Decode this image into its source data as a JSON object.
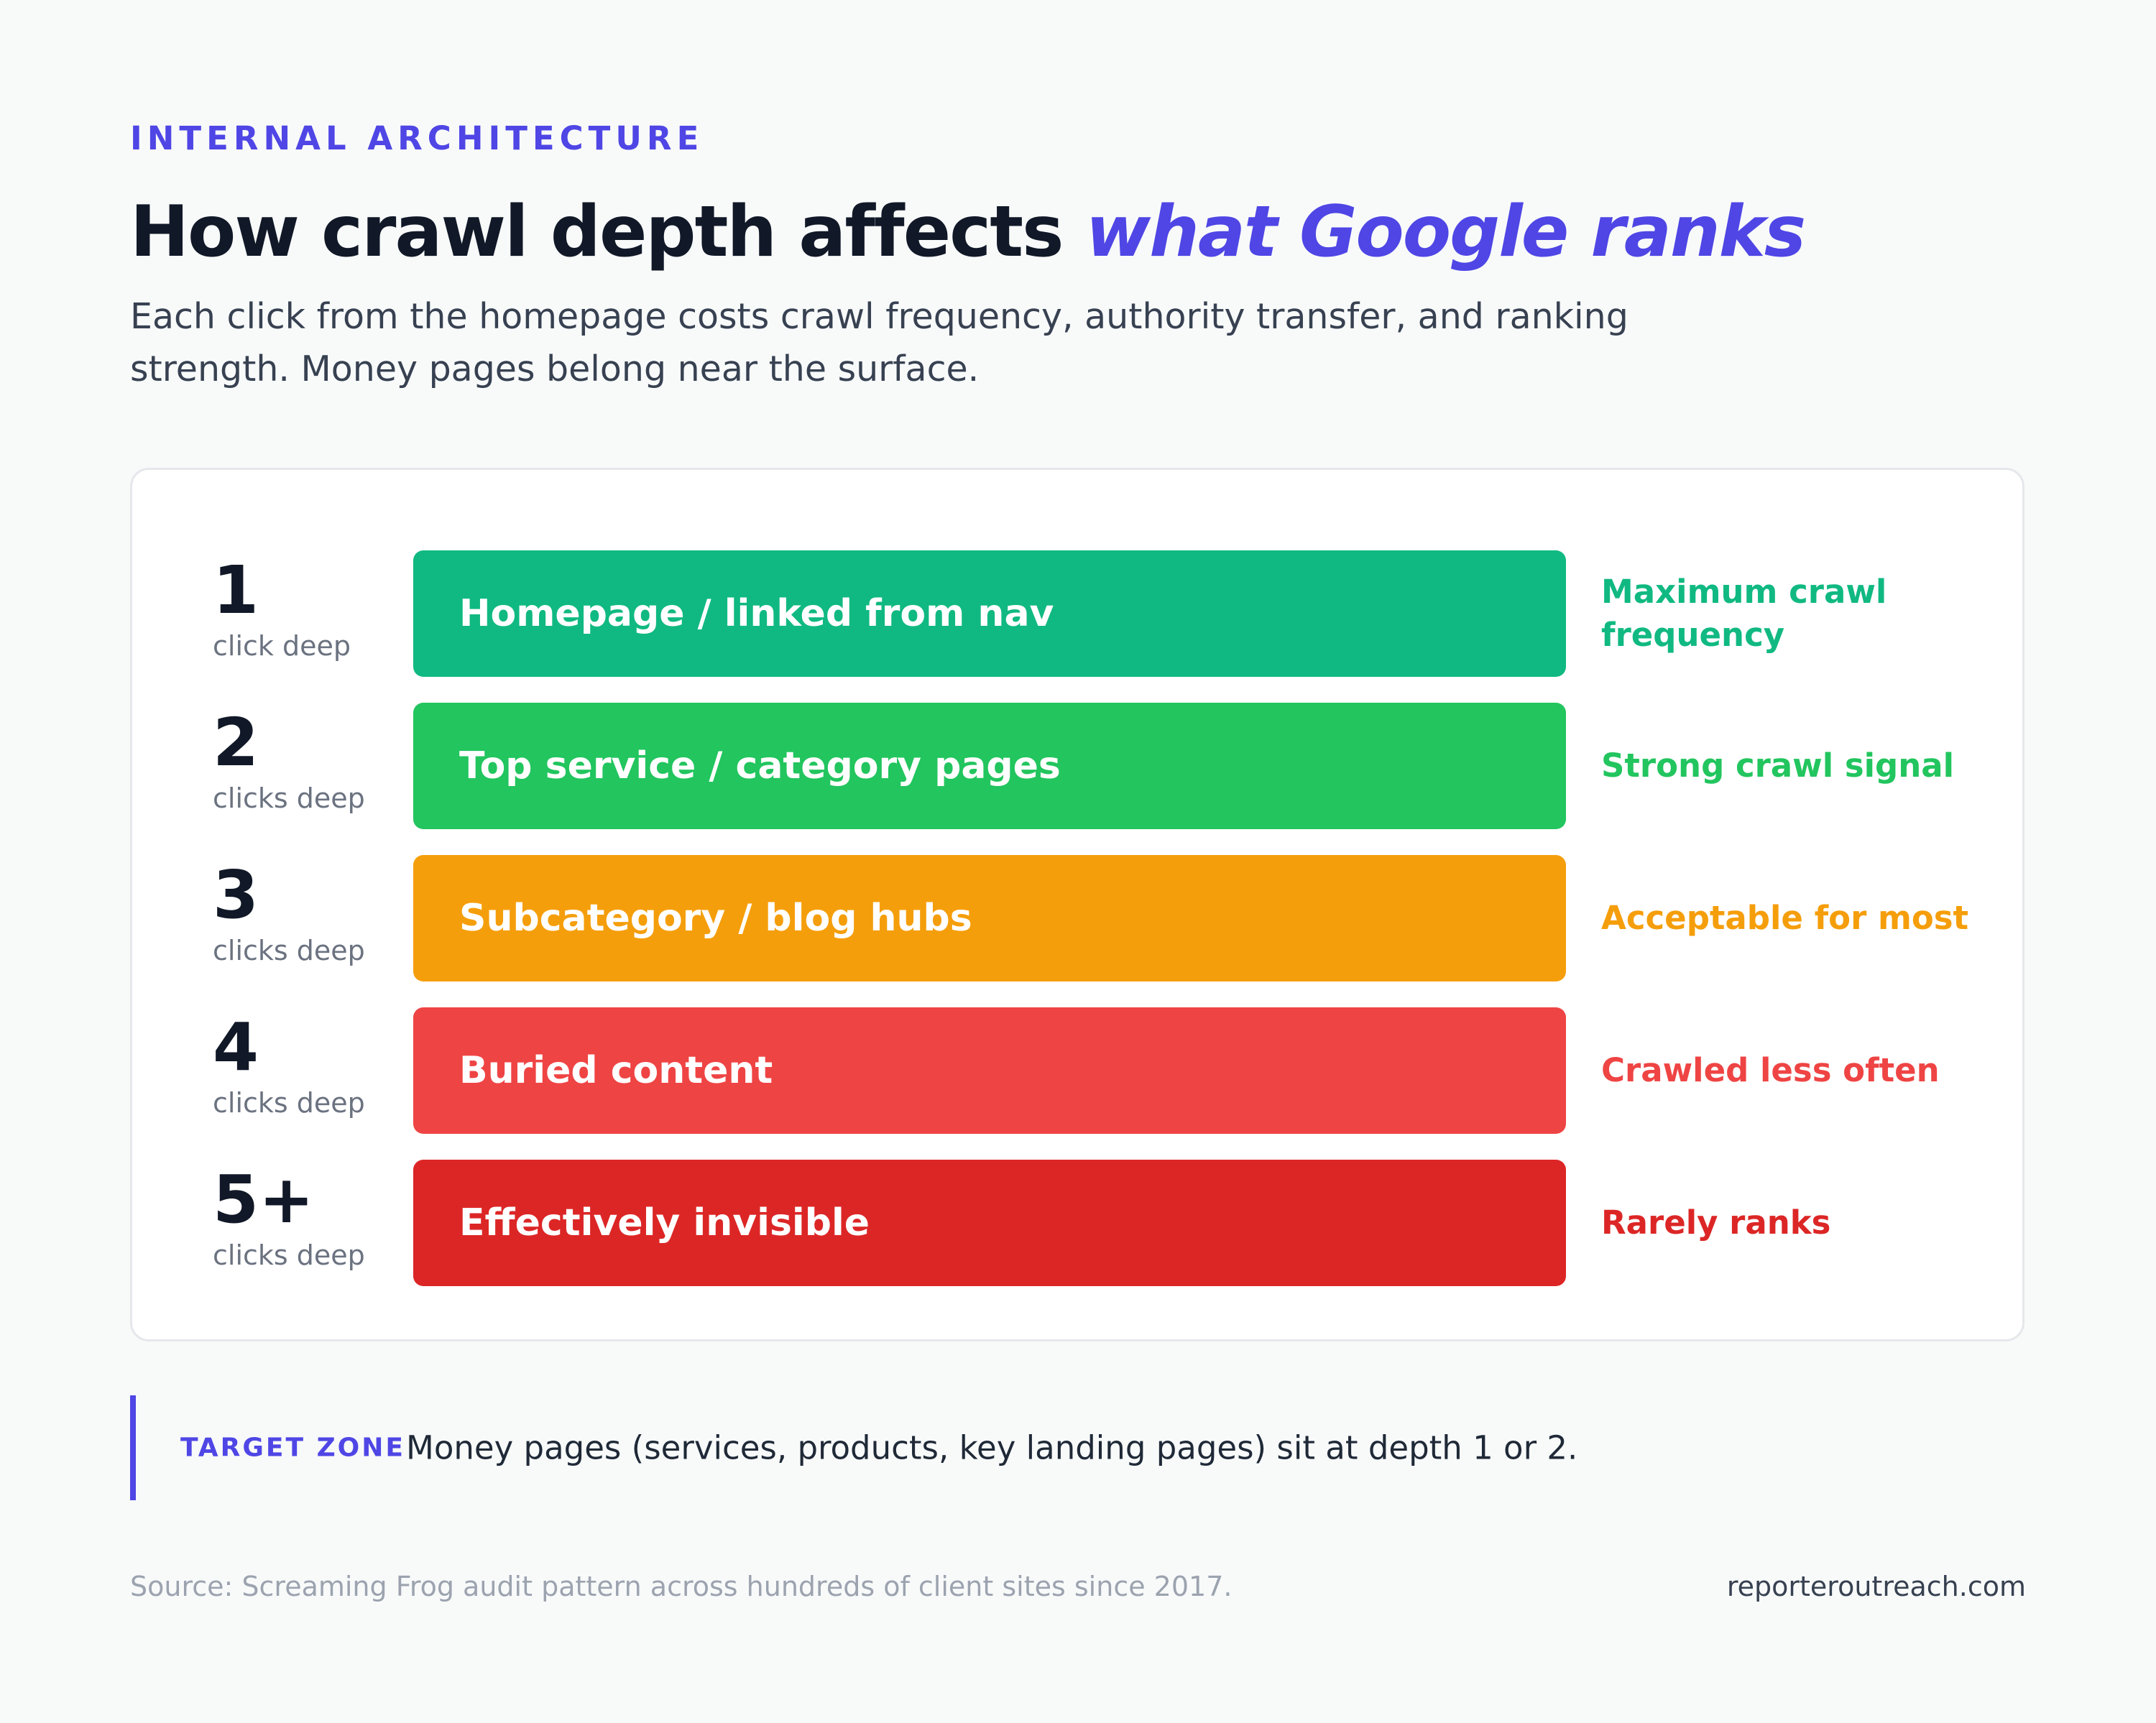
{
  "eyebrow": "INTERNAL ARCHITECTURE",
  "headline": {
    "lead": "How crawl depth affects",
    "highlight": "what Google ranks"
  },
  "subtitle": "Each click from the homepage costs crawl frequency, authority transfer, and ranking strength. Money pages belong near the surface.",
  "tiers": [
    {
      "depth": "1",
      "depth_label": "click deep",
      "page_type": "Homepage / linked from nav",
      "outcome": "Maximum crawl frequency",
      "color": "#10b981",
      "outcome_color": "#10b981"
    },
    {
      "depth": "2",
      "depth_label": "clicks deep",
      "page_type": "Top service / category pages",
      "outcome": "Strong crawl signal",
      "color": "#22c55e",
      "outcome_color": "#22c55e"
    },
    {
      "depth": "3",
      "depth_label": "clicks deep",
      "page_type": "Subcategory / blog hubs",
      "outcome": "Acceptable for most",
      "color": "#f59e0b",
      "outcome_color": "#f59e0b"
    },
    {
      "depth": "4",
      "depth_label": "clicks deep",
      "page_type": "Buried content",
      "outcome": "Crawled less often",
      "color": "#ef4444",
      "outcome_color": "#ef4444"
    },
    {
      "depth": "5+",
      "depth_label": "clicks deep",
      "page_type": "Effectively invisible",
      "outcome": "Rarely ranks",
      "color": "#dc2626",
      "outcome_color": "#dc2626"
    }
  ],
  "callout": {
    "tag": "TARGET ZONE",
    "text": "Money pages (services, products, key landing pages) sit at depth 1 or 2."
  },
  "footer": {
    "source": "Source: Screaming Frog audit pattern across hundreds of client sites since 2017.",
    "brand": "reporteroutreach.com"
  },
  "colors": {
    "accent": "#4f46e5",
    "background": "#f8fafa"
  }
}
